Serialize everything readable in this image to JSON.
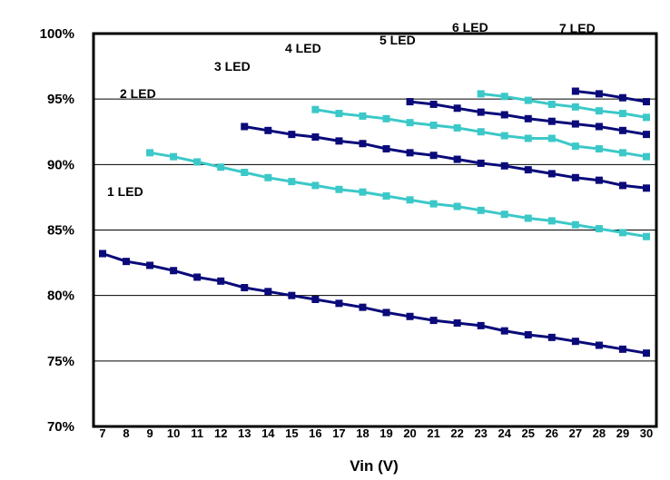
{
  "chart_data": {
    "type": "line",
    "xlabel": "Vin (V)",
    "ylabel": "",
    "xlim": [
      7,
      30
    ],
    "ylim": [
      70,
      100
    ],
    "x_ticks": [
      "7",
      "8",
      "9",
      "10",
      "11",
      "12",
      "13",
      "14",
      "15",
      "16",
      "17",
      "18",
      "19",
      "20",
      "21",
      "22",
      "23",
      "24",
      "25",
      "26",
      "27",
      "28",
      "29",
      "30"
    ],
    "y_ticks": [
      "70%",
      "75%",
      "80%",
      "85%",
      "90%",
      "95%",
      "100%"
    ],
    "grid": "horizontal",
    "colors": {
      "dark": "#0a0a7a",
      "light": "#3cc8c8",
      "text": "#000000"
    },
    "series": [
      {
        "name": "1 LED",
        "color": "dark",
        "x": [
          7,
          8,
          9,
          10,
          11,
          12,
          13,
          14,
          15,
          16,
          17,
          18,
          19,
          20,
          21,
          22,
          23,
          24,
          25,
          26,
          27,
          28,
          29,
          30
        ],
        "values": [
          83.2,
          82.6,
          82.3,
          81.9,
          81.4,
          81.1,
          80.6,
          80.3,
          80.0,
          79.7,
          79.4,
          79.1,
          78.7,
          78.4,
          78.1,
          77.9,
          77.7,
          77.3,
          77.0,
          76.8,
          76.5,
          76.2,
          75.9,
          75.6
        ]
      },
      {
        "name": "2 LED",
        "color": "light",
        "x": [
          9,
          10,
          11,
          12,
          13,
          14,
          15,
          16,
          17,
          18,
          19,
          20,
          21,
          22,
          23,
          24,
          25,
          26,
          27,
          28,
          29,
          30
        ],
        "values": [
          90.9,
          90.6,
          90.2,
          89.8,
          89.4,
          89.0,
          88.7,
          88.4,
          88.1,
          87.9,
          87.6,
          87.3,
          87.0,
          86.8,
          86.5,
          86.2,
          85.9,
          85.7,
          85.4,
          85.1,
          84.8,
          84.5
        ]
      },
      {
        "name": "3 LED",
        "color": "dark",
        "x": [
          13,
          14,
          15,
          16,
          17,
          18,
          19,
          20,
          21,
          22,
          23,
          24,
          25,
          26,
          27,
          28,
          29,
          30
        ],
        "values": [
          92.9,
          92.6,
          92.3,
          92.1,
          91.8,
          91.6,
          91.2,
          90.9,
          90.7,
          90.4,
          90.1,
          89.9,
          89.6,
          89.3,
          89.0,
          88.8,
          88.4,
          88.2
        ]
      },
      {
        "name": "4 LED",
        "color": "light",
        "x": [
          16,
          17,
          18,
          19,
          20,
          21,
          22,
          23,
          24,
          25,
          26,
          27,
          28,
          29,
          30
        ],
        "values": [
          94.2,
          93.9,
          93.7,
          93.5,
          93.2,
          93.0,
          92.8,
          92.5,
          92.2,
          92.0,
          92.0,
          91.4,
          91.2,
          90.9,
          90.6
        ]
      },
      {
        "name": "5 LED",
        "color": "dark",
        "x": [
          20,
          21,
          22,
          23,
          24,
          25,
          26,
          27,
          28,
          29,
          30
        ],
        "values": [
          94.8,
          94.6,
          94.3,
          94.0,
          93.8,
          93.5,
          93.3,
          93.1,
          92.9,
          92.6,
          92.3
        ]
      },
      {
        "name": "6 LED",
        "color": "light",
        "x": [
          23,
          24,
          25,
          26,
          27,
          28,
          29,
          30
        ],
        "values": [
          95.4,
          95.2,
          94.9,
          94.6,
          94.4,
          94.1,
          93.9,
          93.6
        ]
      },
      {
        "name": "7 LED",
        "color": "dark",
        "x": [
          27,
          28,
          29,
          30
        ],
        "values": [
          95.6,
          95.4,
          95.1,
          94.8
        ]
      }
    ]
  }
}
